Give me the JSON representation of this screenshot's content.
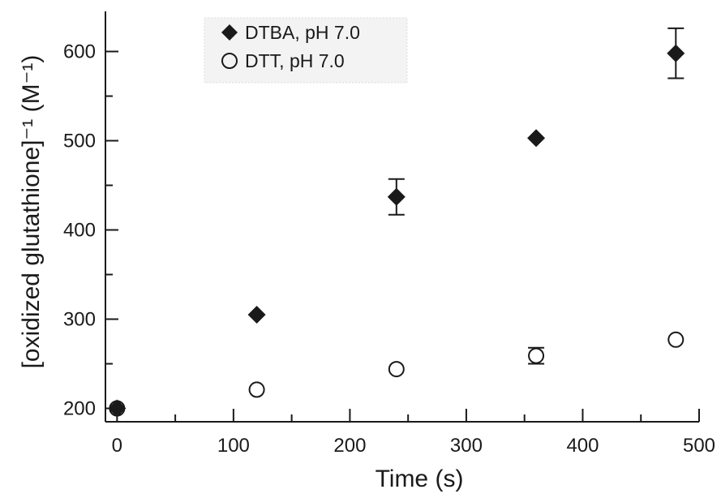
{
  "chart_data": {
    "type": "scatter",
    "xlabel": "Time (s)",
    "ylabel": "[oxidized glutathione]⁻¹ (M⁻¹)",
    "xlim": [
      -10,
      500
    ],
    "ylim": [
      185,
      645
    ],
    "xticks": [
      0,
      100,
      200,
      300,
      400,
      500
    ],
    "yticks": [
      200,
      300,
      400,
      500,
      600
    ],
    "xticks_minor": [
      50,
      150,
      250,
      350,
      450
    ],
    "yticks_minor": [
      250,
      350,
      450,
      550
    ],
    "grid": false,
    "legend_position": "top-left",
    "series": [
      {
        "name": "DTBA, pH 7.0",
        "marker": "filled-diamond",
        "color": "#1a1a1a",
        "x": [
          0,
          120,
          240,
          360,
          480
        ],
        "y": [
          200,
          305,
          437,
          503,
          598
        ],
        "yerr": [
          null,
          null,
          20,
          null,
          28
        ]
      },
      {
        "name": "DTT, pH 7.0",
        "marker": "open-circle",
        "color": "#1a1a1a",
        "x": [
          0,
          120,
          240,
          360,
          480
        ],
        "y": [
          200,
          221,
          244,
          259,
          277
        ],
        "yerr": [
          null,
          null,
          null,
          9,
          null
        ]
      }
    ]
  }
}
